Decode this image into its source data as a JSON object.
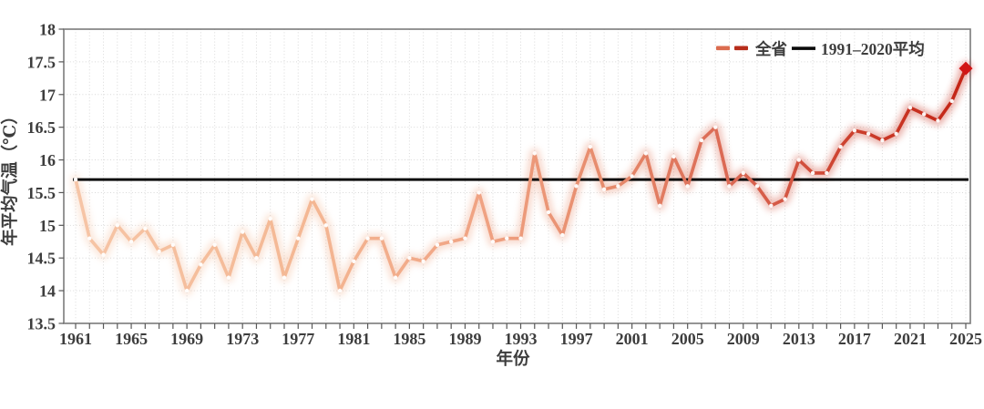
{
  "chart_data": {
    "type": "line",
    "title": "",
    "xlabel": "年份",
    "ylabel": "年平均气温（℃）",
    "xlim": [
      1961,
      2025
    ],
    "ylim": [
      13.5,
      18
    ],
    "x_tick_interval": 4,
    "y_tick_interval": 0.5,
    "x_tick_labels": [
      "1961",
      "1965",
      "1969",
      "1973",
      "1977",
      "1981",
      "1985",
      "1989",
      "1993",
      "1997",
      "2001",
      "2005",
      "2009",
      "2013",
      "2017",
      "2021",
      "2025"
    ],
    "y_tick_labels": [
      "18",
      "17.5",
      "17",
      "16.5",
      "16",
      "15.5",
      "15",
      "14.5",
      "14",
      "13.5"
    ],
    "grid": "dotted vertical per year and horizontal per 0.5",
    "legend_position": "top-right inside plot",
    "series": [
      {
        "name": "全省",
        "type": "line-gradient",
        "marker": "small-white-dot",
        "last_point_marker": "red-diamond",
        "last_point_color": "#d11515",
        "gradient": [
          {
            "off": 0,
            "color": "#f6c5a6"
          },
          {
            "off": 0.25,
            "color": "#f4b894"
          },
          {
            "off": 0.45,
            "color": "#f0a383"
          },
          {
            "off": 0.6,
            "color": "#e68a6b"
          },
          {
            "off": 0.75,
            "color": "#d96450"
          },
          {
            "off": 0.88,
            "color": "#cb3d2b"
          },
          {
            "off": 1,
            "color": "#c32415"
          }
        ],
        "x_start_year": 1961,
        "values": [
          15.7,
          14.8,
          14.55,
          15.0,
          14.75,
          14.95,
          14.6,
          14.7,
          14.0,
          14.4,
          14.7,
          14.2,
          14.9,
          14.5,
          15.1,
          14.2,
          14.8,
          15.4,
          15.0,
          14.0,
          14.45,
          14.8,
          14.8,
          14.2,
          14.5,
          14.45,
          14.7,
          14.75,
          14.8,
          15.5,
          14.75,
          14.8,
          14.8,
          16.1,
          15.2,
          14.85,
          15.6,
          16.2,
          15.55,
          15.6,
          15.75,
          16.1,
          15.3,
          16.05,
          15.6,
          16.3,
          16.5,
          15.6,
          15.8,
          15.6,
          15.3,
          15.4,
          16.0,
          15.8,
          15.8,
          16.2,
          16.45,
          16.4,
          16.3,
          16.4,
          16.8,
          16.7,
          16.6,
          16.9,
          17.4
        ]
      },
      {
        "name": "1991–2020平均",
        "type": "hline",
        "color": "#0a0a0a",
        "value": 15.7
      }
    ],
    "colors": {
      "axis_text": "#3d3d3d",
      "plot_border": "#7b7b7b",
      "tick": "#595959",
      "gridline": "#d9d9d9",
      "legend_dash_light": "#db6c4f",
      "legend_dash_dark": "#b72d1b",
      "glow": "series gradient blurred"
    }
  }
}
